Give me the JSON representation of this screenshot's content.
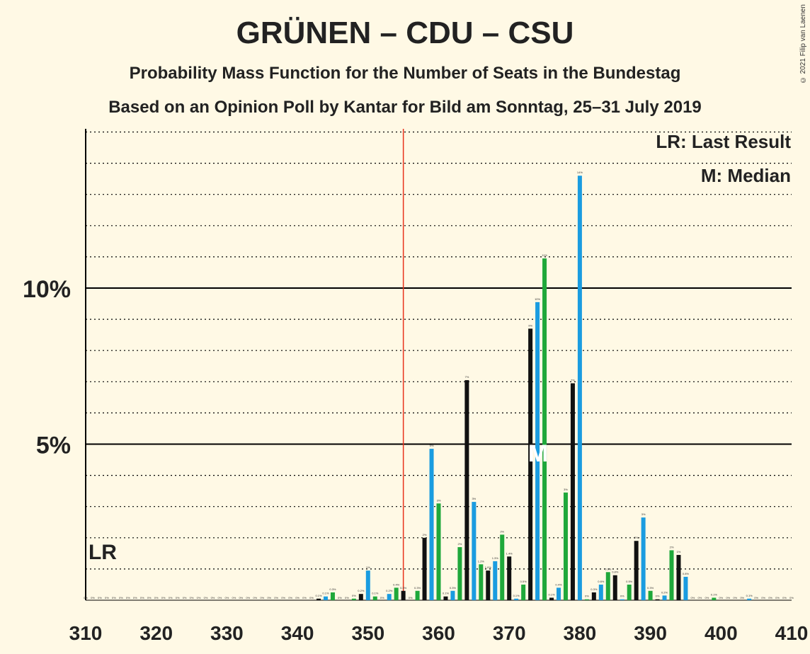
{
  "chart_data": {
    "type": "bar",
    "title": "GRÜNEN – CDU – CSU",
    "subtitle": "Probability Mass Function for the Number of Seats in the Bundestag",
    "subtitle2": "Based on an Opinion Poll by Kantar for Bild am Sonntag, 25–31 July 2019",
    "credit": "© 2021 Filip van Laenen",
    "legend": {
      "lr": "LR: Last Result",
      "median": "M: Median"
    },
    "lr_label": "LR",
    "median_label": "M",
    "last_result": 312,
    "majority": 355,
    "median": 375,
    "xlim": [
      310,
      410
    ],
    "ylim": [
      0,
      15
    ],
    "x_ticks": [
      310,
      320,
      330,
      340,
      350,
      360,
      370,
      380,
      390,
      400,
      410
    ],
    "y_ticks": [
      {
        "value": 5,
        "label": "5%"
      },
      {
        "value": 10,
        "label": "10%"
      }
    ],
    "colors": [
      "#1A9CE0",
      "#1FA83A",
      "#111111"
    ],
    "bars": [
      {
        "x": 343,
        "v": 0.05,
        "c": 2,
        "label": "0.1%"
      },
      {
        "x": 344,
        "v": 0.12,
        "c": 0,
        "label": "0.1%"
      },
      {
        "x": 345,
        "v": 0.25,
        "c": 1,
        "label": "0.3%"
      },
      {
        "x": 348,
        "v": 0.05,
        "c": 1,
        "label": "0%"
      },
      {
        "x": 349,
        "v": 0.2,
        "c": 2,
        "label": "0.2%"
      },
      {
        "x": 350,
        "v": 0.95,
        "c": 0,
        "label": "1%"
      },
      {
        "x": 351,
        "v": 0.12,
        "c": 1,
        "label": "0.1%"
      },
      {
        "x": 353,
        "v": 0.2,
        "c": 0,
        "label": "0.2%"
      },
      {
        "x": 354,
        "v": 0.4,
        "c": 1,
        "label": "0.4%"
      },
      {
        "x": 355,
        "v": 0.3,
        "c": 2,
        "label": "0.3%"
      },
      {
        "x": 357,
        "v": 0.3,
        "c": 1,
        "label": "0.3%"
      },
      {
        "x": 358,
        "v": 2.0,
        "c": 2,
        "label": "2%"
      },
      {
        "x": 359,
        "v": 4.85,
        "c": 0,
        "label": "5%"
      },
      {
        "x": 360,
        "v": 3.1,
        "c": 1,
        "label": "3%"
      },
      {
        "x": 361,
        "v": 0.12,
        "c": 2,
        "label": "0.1%"
      },
      {
        "x": 362,
        "v": 0.3,
        "c": 0,
        "label": "0.3%"
      },
      {
        "x": 363,
        "v": 1.7,
        "c": 1,
        "label": "2%"
      },
      {
        "x": 364,
        "v": 7.05,
        "c": 2,
        "label": "7%"
      },
      {
        "x": 365,
        "v": 3.15,
        "c": 0,
        "label": "3%"
      },
      {
        "x": 366,
        "v": 1.15,
        "c": 1,
        "label": "1.2%"
      },
      {
        "x": 367,
        "v": 0.95,
        "c": 2,
        "label": "1.0%"
      },
      {
        "x": 368,
        "v": 1.25,
        "c": 0,
        "label": "1.3%"
      },
      {
        "x": 369,
        "v": 2.1,
        "c": 1,
        "label": "2%"
      },
      {
        "x": 370,
        "v": 1.4,
        "c": 2,
        "label": "1.4%"
      },
      {
        "x": 371,
        "v": 0.05,
        "c": 0,
        "label": "0.1%"
      },
      {
        "x": 372,
        "v": 0.5,
        "c": 1,
        "label": "0.5%"
      },
      {
        "x": 373,
        "v": 8.7,
        "c": 2,
        "label": "9%"
      },
      {
        "x": 374,
        "v": 9.55,
        "c": 0,
        "label": "10%"
      },
      {
        "x": 375,
        "v": 10.95,
        "c": 1,
        "label": "11%"
      },
      {
        "x": 376,
        "v": 0.08,
        "c": 2,
        "label": "0.1%"
      },
      {
        "x": 377,
        "v": 0.4,
        "c": 0,
        "label": "0.4%"
      },
      {
        "x": 378,
        "v": 3.45,
        "c": 1,
        "label": "3%"
      },
      {
        "x": 379,
        "v": 6.95,
        "c": 2,
        "label": "7%"
      },
      {
        "x": 380,
        "v": 13.6,
        "c": 0,
        "label": "14%"
      },
      {
        "x": 381,
        "v": 0.03,
        "c": 1,
        "label": "0%"
      },
      {
        "x": 382,
        "v": 0.25,
        "c": 2,
        "label": "0.3%"
      },
      {
        "x": 383,
        "v": 0.5,
        "c": 0,
        "label": "0.6%"
      },
      {
        "x": 384,
        "v": 0.9,
        "c": 1,
        "label": "0.9%"
      },
      {
        "x": 385,
        "v": 0.8,
        "c": 2,
        "label": "0.8%"
      },
      {
        "x": 386,
        "v": 0.03,
        "c": 0,
        "label": "0%"
      },
      {
        "x": 387,
        "v": 0.5,
        "c": 1,
        "label": "0.5%"
      },
      {
        "x": 388,
        "v": 1.9,
        "c": 2,
        "label": "2%"
      },
      {
        "x": 389,
        "v": 2.65,
        "c": 0,
        "label": "3%"
      },
      {
        "x": 390,
        "v": 0.3,
        "c": 1,
        "label": "0.3%"
      },
      {
        "x": 391,
        "v": 0.03,
        "c": 2,
        "label": "0%"
      },
      {
        "x": 392,
        "v": 0.15,
        "c": 0,
        "label": "0.2%"
      },
      {
        "x": 393,
        "v": 1.6,
        "c": 1,
        "label": "2%"
      },
      {
        "x": 394,
        "v": 1.45,
        "c": 2,
        "label": "1%"
      },
      {
        "x": 395,
        "v": 0.75,
        "c": 0,
        "label": "0.8%"
      },
      {
        "x": 399,
        "v": 0.08,
        "c": 1,
        "label": "0.1%"
      },
      {
        "x": 404,
        "v": 0.05,
        "c": 0,
        "label": "0.1%"
      }
    ]
  }
}
